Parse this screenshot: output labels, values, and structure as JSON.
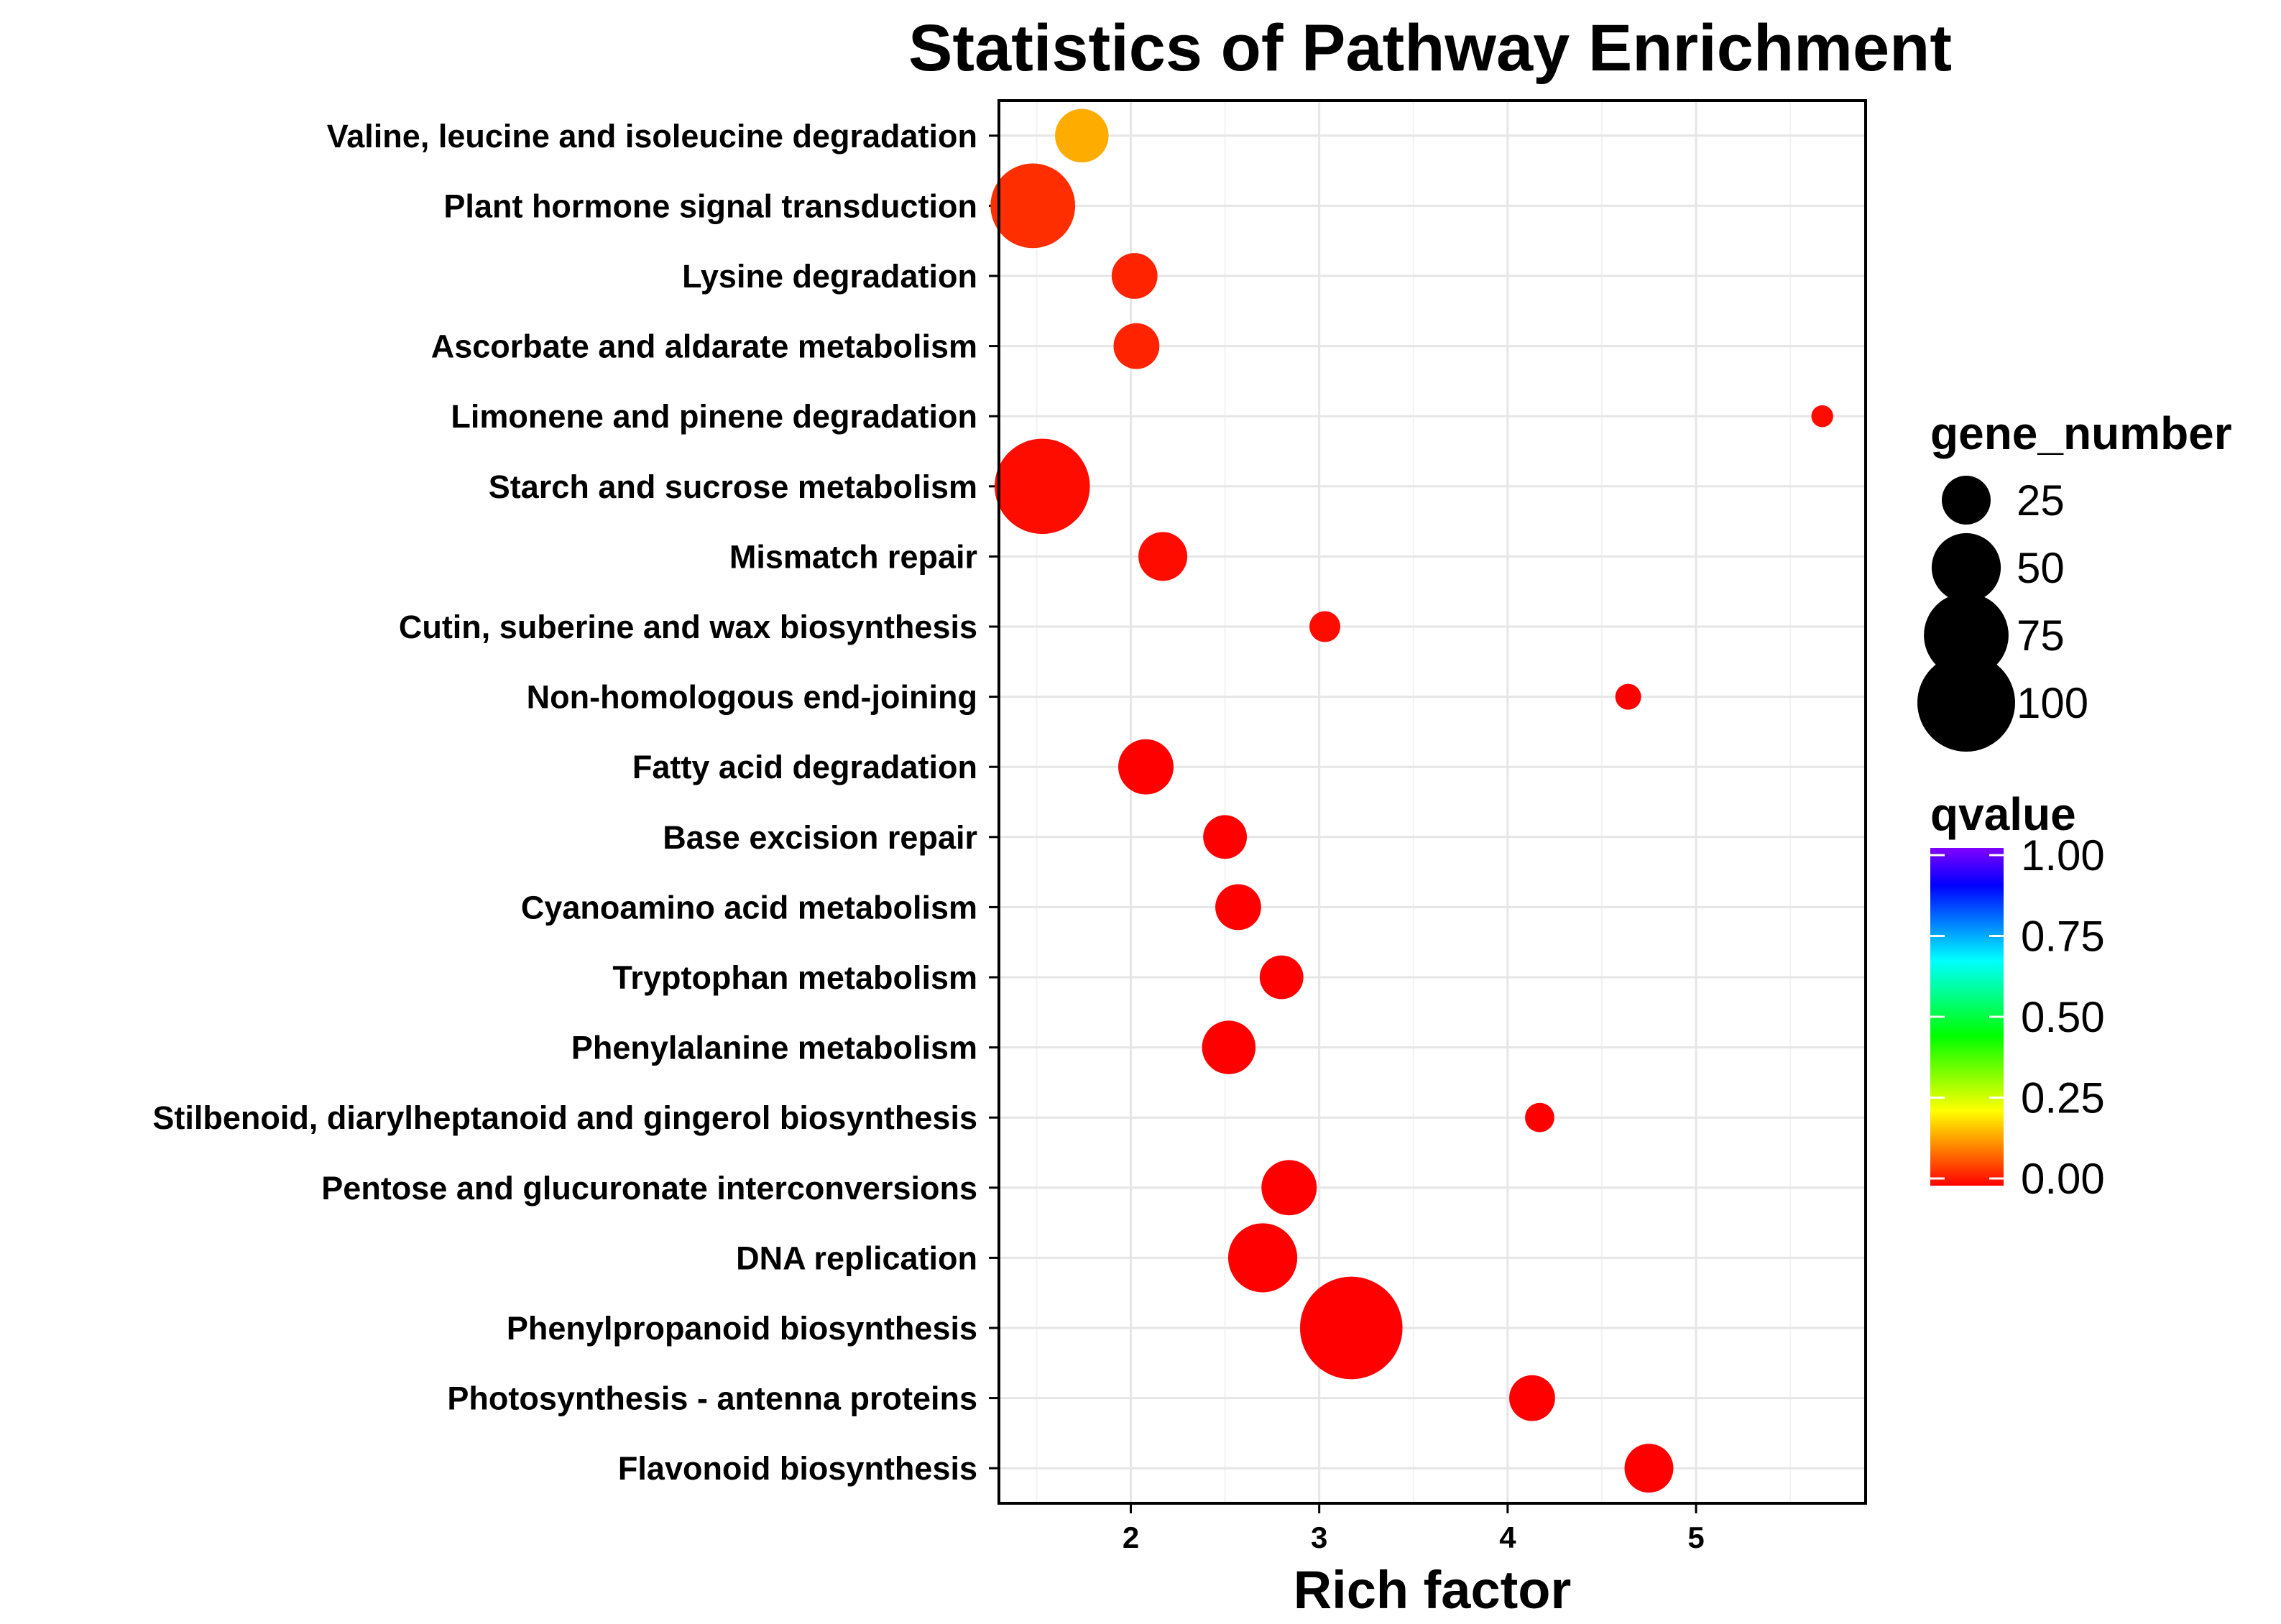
{
  "chart_data": {
    "type": "scatter",
    "title": "Statistics of Pathway Enrichment",
    "xlabel": "Rich factor",
    "ylabel": "",
    "xlim": [
      1.3,
      5.9
    ],
    "x_ticks": [
      2,
      3,
      4,
      5
    ],
    "grid": true,
    "categories": [
      "Valine, leucine and isoleucine degradation",
      "Plant hormone signal transduction",
      "Lysine degradation",
      "Ascorbate and aldarate metabolism",
      "Limonene and pinene degradation",
      "Starch and sucrose metabolism",
      "Mismatch repair",
      "Cutin, suberine and wax biosynthesis",
      "Non-homologous end-joining",
      "Fatty acid degradation",
      "Base excision repair",
      "Cyanoamino acid metabolism",
      "Tryptophan metabolism",
      "Phenylalanine metabolism",
      "Stilbenoid, diarylheptanoid and gingerol biosynthesis",
      "Pentose and glucuronate interconversions",
      "DNA replication",
      "Phenylpropanoid biosynthesis",
      "Photosynthesis - antenna proteins",
      "Flavonoid biosynthesis"
    ],
    "points": [
      {
        "pathway": "Valine, leucine and isoleucine degradation",
        "rich_factor": 1.74,
        "gene_number": 30,
        "qvalue": 0.15
      },
      {
        "pathway": "Plant hormone signal transduction",
        "rich_factor": 1.48,
        "gene_number": 75,
        "qvalue": 0.04
      },
      {
        "pathway": "Lysine degradation",
        "rich_factor": 2.02,
        "gene_number": 22,
        "qvalue": 0.03
      },
      {
        "pathway": "Ascorbate and aldarate metabolism",
        "rich_factor": 2.03,
        "gene_number": 22,
        "qvalue": 0.03
      },
      {
        "pathway": "Limonene and pinene degradation",
        "rich_factor": 5.67,
        "gene_number": 5,
        "qvalue": 0.01
      },
      {
        "pathway": "Starch and sucrose metabolism",
        "rich_factor": 1.53,
        "gene_number": 95,
        "qvalue": 0.01
      },
      {
        "pathway": "Mismatch repair",
        "rich_factor": 2.17,
        "gene_number": 25,
        "qvalue": 0.01
      },
      {
        "pathway": "Cutin, suberine and wax biosynthesis",
        "rich_factor": 3.03,
        "gene_number": 10,
        "qvalue": 0.01
      },
      {
        "pathway": "Non-homologous end-joining",
        "rich_factor": 4.64,
        "gene_number": 7,
        "qvalue": 0.0
      },
      {
        "pathway": "Fatty acid degradation",
        "rich_factor": 2.08,
        "gene_number": 32,
        "qvalue": 0.0
      },
      {
        "pathway": "Base excision repair",
        "rich_factor": 2.5,
        "gene_number": 20,
        "qvalue": 0.0
      },
      {
        "pathway": "Cyanoamino acid metabolism",
        "rich_factor": 2.57,
        "gene_number": 22,
        "qvalue": 0.0
      },
      {
        "pathway": "Tryptophan metabolism",
        "rich_factor": 2.8,
        "gene_number": 20,
        "qvalue": 0.0
      },
      {
        "pathway": "Phenylalanine metabolism",
        "rich_factor": 2.52,
        "gene_number": 30,
        "qvalue": 0.0
      },
      {
        "pathway": "Stilbenoid, diarylheptanoid and gingerol biosynthesis",
        "rich_factor": 4.17,
        "gene_number": 9,
        "qvalue": 0.0
      },
      {
        "pathway": "Pentose and glucuronate interconversions",
        "rich_factor": 2.84,
        "gene_number": 32,
        "qvalue": 0.0
      },
      {
        "pathway": "DNA replication",
        "rich_factor": 2.7,
        "gene_number": 50,
        "qvalue": 0.0
      },
      {
        "pathway": "Phenylpropanoid biosynthesis",
        "rich_factor": 3.17,
        "gene_number": 110,
        "qvalue": 0.0
      },
      {
        "pathway": "Photosynthesis - antenna proteins",
        "rich_factor": 4.13,
        "gene_number": 22,
        "qvalue": 0.0
      },
      {
        "pathway": "Flavonoid biosynthesis",
        "rich_factor": 4.75,
        "gene_number": 25,
        "qvalue": 0.0
      }
    ],
    "size_legend": {
      "title": "gene_number",
      "values": [
        25,
        50,
        75,
        100
      ],
      "labels": [
        "25",
        "50",
        "75",
        "100"
      ]
    },
    "color_legend": {
      "title": "qvalue",
      "range": [
        0,
        1
      ],
      "ticks": [
        1.0,
        0.75,
        0.5,
        0.25,
        0.0
      ],
      "labels": [
        "1.00",
        "0.75",
        "0.50",
        "0.25",
        "0.00"
      ],
      "colors": [
        "#ff0000",
        "#ff8000",
        "#ffff00",
        "#80ff00",
        "#00ff00",
        "#00ff80",
        "#00ffff",
        "#0080ff",
        "#0000ff",
        "#8000ff"
      ]
    }
  }
}
